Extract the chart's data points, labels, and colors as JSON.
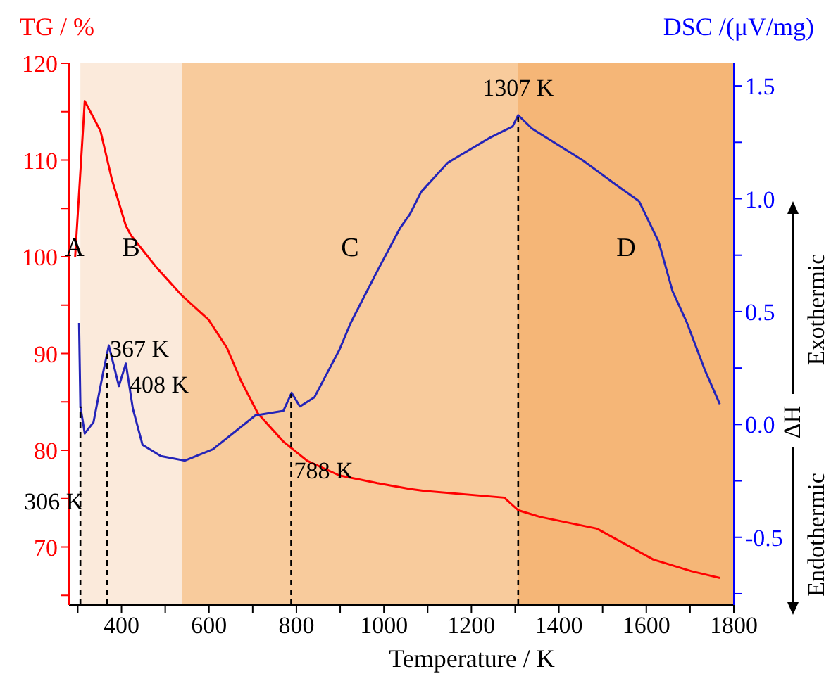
{
  "chart_data": {
    "type": "line",
    "xlabel": "Temperature / K",
    "ylabel": "TG / %",
    "y2label": "DSC /(μV/mg)",
    "xlim": [
      280,
      1800
    ],
    "xticks": [
      {
        "value": 300,
        "label": null
      },
      400,
      {
        "value": 500,
        "label": null
      },
      600,
      {
        "value": 700,
        "label": null
      },
      800,
      {
        "value": 900,
        "label": null
      },
      1000,
      {
        "value": 1100,
        "label": null
      },
      1200,
      {
        "value": 1300,
        "label": null
      },
      1400,
      {
        "value": 1500,
        "label": null
      },
      1600,
      {
        "value": 1700,
        "label": null
      },
      1800
    ],
    "ylim": [
      64,
      120
    ],
    "yticks": [
      {
        "value": 65,
        "label": null
      },
      70,
      {
        "value": 75,
        "label": null
      },
      80,
      {
        "value": 85,
        "label": null
      },
      90,
      {
        "value": 95,
        "label": null
      },
      100,
      {
        "value": 105,
        "label": null
      },
      110,
      {
        "value": 115,
        "label": null
      },
      120
    ],
    "y2lim": [
      -0.8,
      1.6
    ],
    "y2ticks": [
      {
        "value": -0.75,
        "label": null
      },
      -0.5,
      {
        "value": -0.25,
        "label": null
      },
      {
        "value": 0,
        "label": "0.0"
      },
      {
        "value": 0.25,
        "label": null
      },
      0.5,
      {
        "value": 0.75,
        "label": null
      },
      {
        "value": 1,
        "label": "1.0"
      },
      {
        "value": 1.25,
        "label": null
      },
      1.5
    ],
    "series": [
      {
        "color": "#ff0000",
        "x": [
          294,
          316,
          352,
          378,
          410,
          422,
          480,
          538,
          599,
          641,
          673,
          712,
          770,
          825,
          898,
          985,
          1059,
          1092,
          1275,
          1307,
          1358,
          1487,
          1616,
          1703,
          1768
        ],
        "values": [
          100,
          116.1,
          113,
          108,
          103.2,
          102.2,
          98.9,
          96,
          93.5,
          90.6,
          87.2,
          83.8,
          80.9,
          78.9,
          77.4,
          76.6,
          76,
          75.8,
          75.1,
          73.8,
          73.1,
          71.9,
          68.7,
          67.5,
          66.8
        ]
      },
      {
        "color": "#2424b8",
        "axis": "y2",
        "x": [
          303,
          306,
          316,
          336,
          358,
          371,
          394,
          410,
          426,
          448,
          490,
          545,
          609,
          706,
          770,
          789,
          808,
          841,
          898,
          924,
          985,
          1037,
          1059,
          1085,
          1146,
          1242,
          1294,
          1307,
          1339,
          1455,
          1532,
          1583,
          1628,
          1660,
          1693,
          1734,
          1768
        ],
        "values": [
          0.45,
          0.08,
          -0.04,
          0.01,
          0.23,
          0.35,
          0.17,
          0.27,
          0.07,
          -0.09,
          -0.14,
          -0.16,
          -0.11,
          0.04,
          0.06,
          0.14,
          0.08,
          0.12,
          0.33,
          0.45,
          0.68,
          0.87,
          0.93,
          1.03,
          1.16,
          1.27,
          1.32,
          1.37,
          1.31,
          1.17,
          1.06,
          0.99,
          0.81,
          0.59,
          0.45,
          0.24,
          0.09
        ]
      }
    ],
    "bands": [
      {
        "axis": "x",
        "from": 306,
        "to": 538,
        "label": "B",
        "color": "#fbeadb"
      },
      {
        "axis": "x",
        "from": 538,
        "to": 1307,
        "label": "C",
        "color": "#f8cb9c"
      },
      {
        "axis": "x",
        "from": 1307,
        "to": 1800,
        "label": "D",
        "color": "#f5b677"
      }
    ],
    "ref_lines": [
      {
        "axis": "x",
        "value": 306,
        "label": "306 K",
        "color": "#000000",
        "line_style": "dashed"
      },
      {
        "axis": "x",
        "value": 367,
        "label": "367 K",
        "color": "#000000",
        "line_style": "dashed"
      },
      {
        "axis": "x",
        "value": 788,
        "label": "788 K",
        "color": "#000000",
        "line_style": "dashed"
      },
      {
        "axis": "x",
        "value": 1307,
        "label": "1307 K",
        "color": "#000000",
        "line_style": "dashed"
      }
    ],
    "annotations": [
      "408 K",
      "A",
      "Exothermic",
      "ΔH",
      "Endothermic"
    ],
    "grid": false,
    "legend": false,
    "marker": "none",
    "line_style": "solid"
  }
}
